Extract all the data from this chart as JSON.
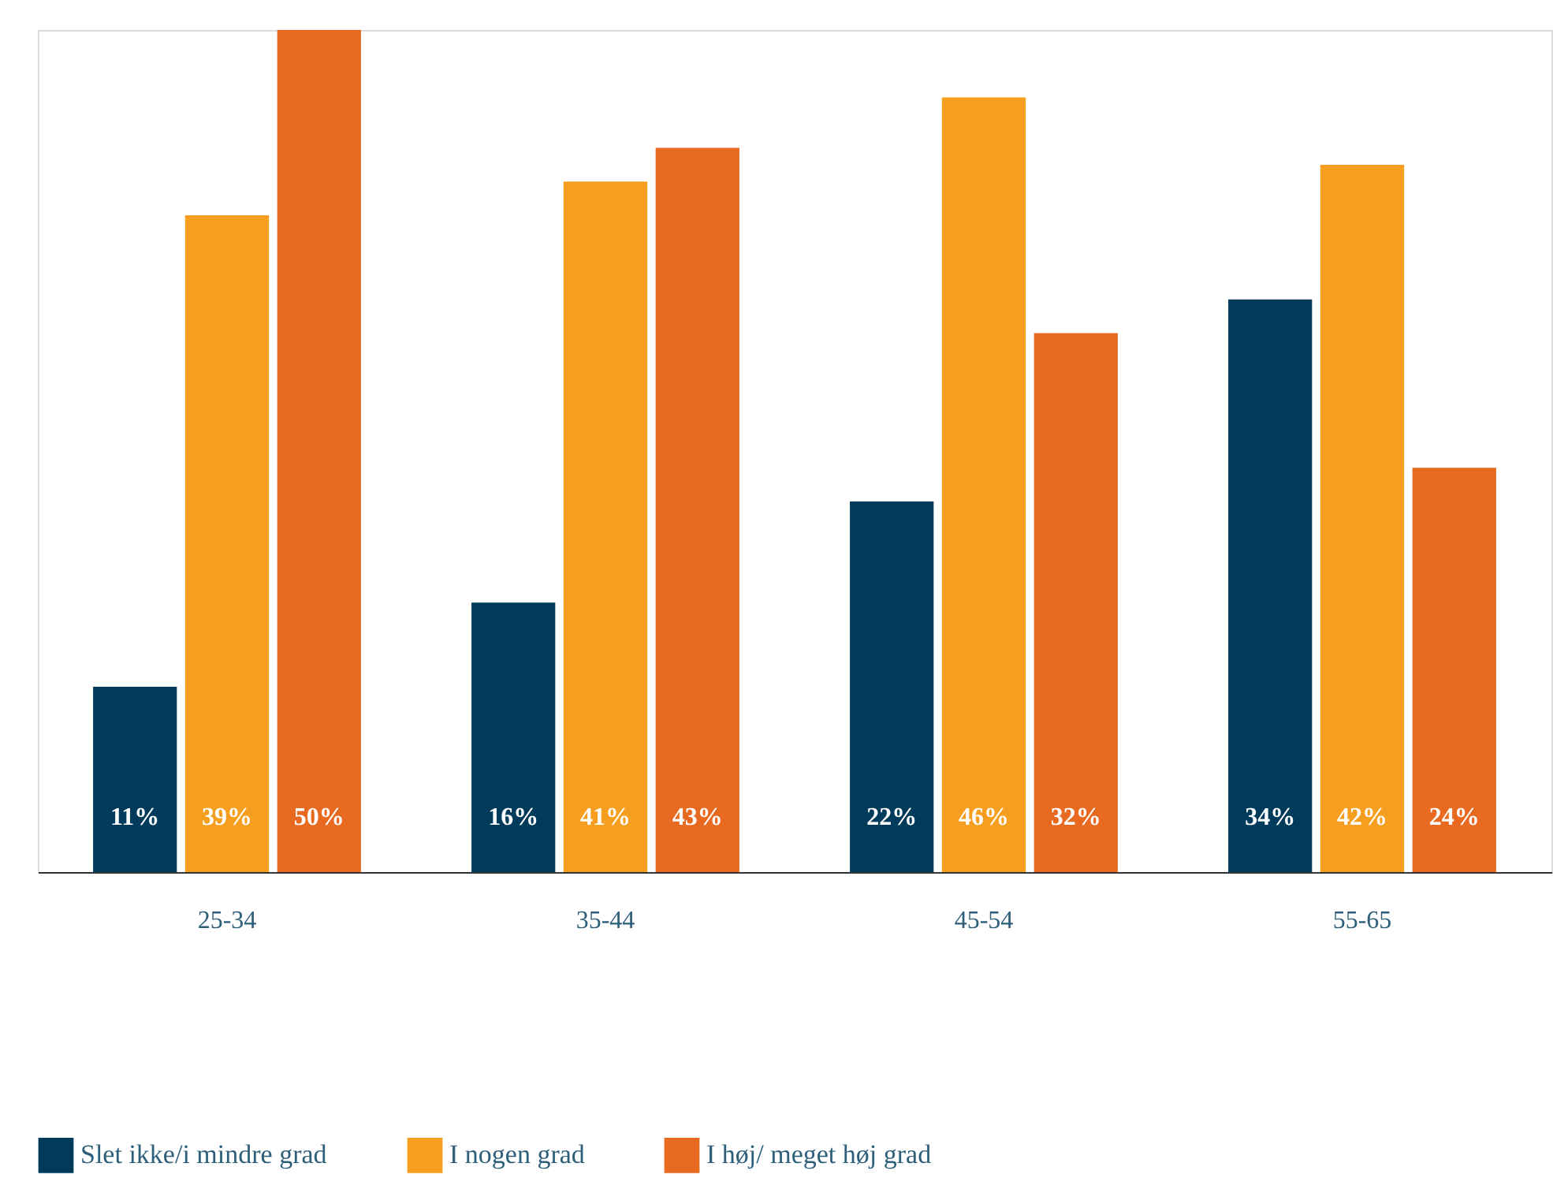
{
  "chart_data": {
    "type": "bar",
    "categories": [
      "25-34",
      "35-44",
      "45-54",
      "55-65"
    ],
    "series": [
      {
        "name": "Slet ikke/i mindre grad",
        "color": "#003b5c",
        "values": [
          11,
          16,
          22,
          34
        ],
        "value_labels": [
          "11%",
          "16%",
          "22%",
          "34%"
        ]
      },
      {
        "name": "I nogen grad",
        "color": "#f59e1f",
        "values": [
          39,
          41,
          46,
          42
        ],
        "value_labels": [
          "39%",
          "41%",
          "46%",
          "42%"
        ]
      },
      {
        "name": "I høj/ meget høj grad",
        "color": "#e86a21",
        "values": [
          50,
          43,
          32,
          24
        ],
        "value_labels": [
          "50%",
          "43%",
          "32%",
          "24%"
        ]
      }
    ],
    "legend": "bottom",
    "grid": false
  }
}
